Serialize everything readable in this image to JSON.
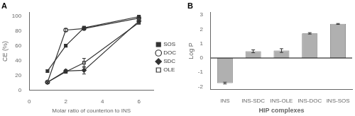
{
  "chart_data": [
    {
      "type": "line",
      "title": "A",
      "x": [
        1,
        2,
        3,
        6
      ],
      "series": [
        {
          "name": "SOS",
          "color": "#333333",
          "marker": "square",
          "values": [
            26,
            60,
            84,
            99
          ],
          "yerr": [
            1.5,
            2,
            2,
            1
          ]
        },
        {
          "name": "DOC",
          "color": "#333333",
          "marker": "circle-open",
          "values": [
            11,
            81,
            83,
            97
          ],
          "yerr": [
            1,
            2,
            2,
            1
          ]
        },
        {
          "name": "SDC",
          "color": "#333333",
          "marker": "diamond",
          "values": [
            11,
            26,
            27,
            93
          ],
          "yerr": [
            1,
            2,
            5,
            2
          ]
        },
        {
          "name": "OLE",
          "color": "#333333",
          "marker": "square-open",
          "values": [
            11,
            25,
            37,
            91
          ],
          "yerr": [
            1,
            2,
            6,
            2
          ]
        }
      ],
      "xlabel": "Molar ratio of counterion to INS",
      "ylabel": "CE (%)",
      "xlim": [
        0,
        6.8
      ],
      "ylim": [
        0,
        105
      ],
      "xticks": [
        0,
        2,
        4,
        6
      ],
      "yticks": [
        0,
        20,
        40,
        60,
        80,
        100
      ],
      "legend": "right",
      "grid": false
    },
    {
      "type": "bar",
      "title": "B",
      "categories": [
        "INS",
        "INS-SDC",
        "INS-OLE",
        "INS-DOC",
        "INS-SOS"
      ],
      "values": [
        -1.75,
        0.47,
        0.52,
        1.72,
        2.38
      ],
      "yerr": [
        0.06,
        0.1,
        0.13,
        0.05,
        0.03
      ],
      "color": "#b0b0b0",
      "xlabel": "HIP complexes",
      "ylabel": "Log P",
      "ylim": [
        -2.2,
        3.2
      ],
      "yticks": [
        -2,
        -1,
        0,
        1,
        2,
        3
      ],
      "grid": false
    }
  ]
}
